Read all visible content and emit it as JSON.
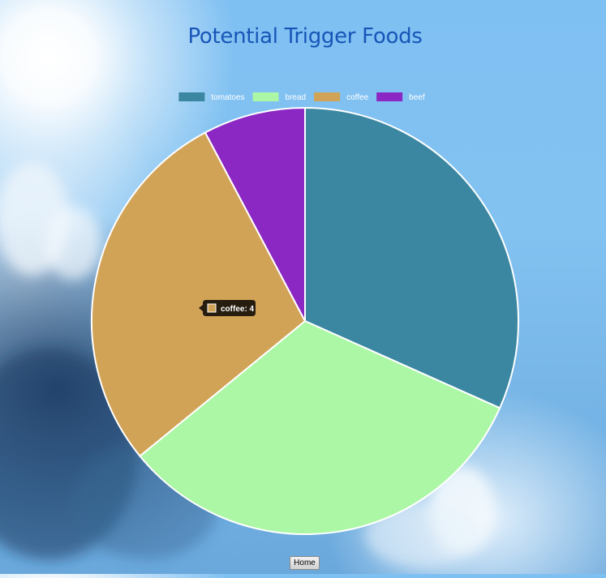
{
  "page": {
    "title": "Potential Trigger Foods",
    "home_label": "Home"
  },
  "chart_data": {
    "type": "pie",
    "title": "Potential Trigger Foods",
    "legend_position": "top",
    "slices": [
      {
        "label": "tomatoes",
        "value": 4.5,
        "color": "#3b87a1"
      },
      {
        "label": "bread",
        "value": 4.6,
        "color": "#abf7a5"
      },
      {
        "label": "coffee",
        "value": 4,
        "color": "#d1a357"
      },
      {
        "label": "beef",
        "value": 1.1,
        "color": "#8b27c3"
      }
    ],
    "tooltip": {
      "label": "coffee",
      "value": 4,
      "text": "coffee: 4"
    }
  }
}
